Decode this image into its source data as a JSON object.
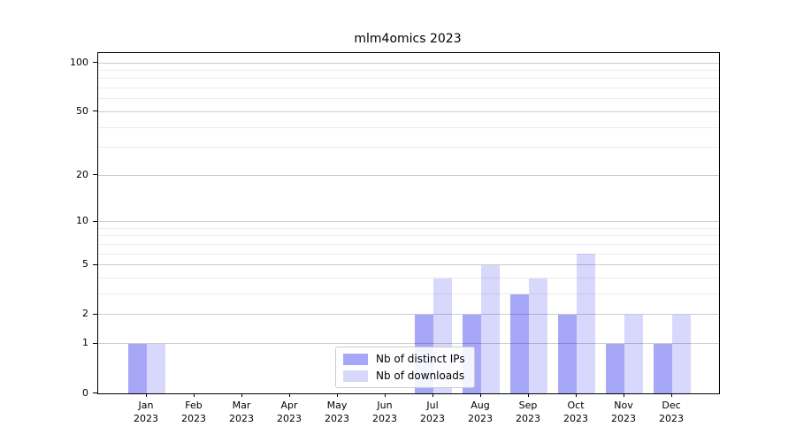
{
  "chart_data": {
    "type": "bar",
    "title": "mlm4omics 2023",
    "categories": [
      "Jan",
      "Feb",
      "Mar",
      "Apr",
      "May",
      "Jun",
      "Jul",
      "Aug",
      "Sep",
      "Oct",
      "Nov",
      "Dec"
    ],
    "category_year": "2023",
    "series": [
      {
        "name": "Nb of distinct IPs",
        "color": "rgba(10,10,235,0.36)",
        "values": [
          1,
          0,
          0,
          0,
          0,
          0,
          2,
          2,
          3,
          2,
          1,
          1
        ]
      },
      {
        "name": "Nb of downloads",
        "color": "rgba(10,10,235,0.16)",
        "values": [
          1,
          0,
          0,
          0,
          0,
          0,
          4,
          5,
          4,
          6,
          2,
          2
        ]
      }
    ],
    "xlabel": "",
    "ylabel": "",
    "y_axis": {
      "scale": "log1p",
      "major_ticks": [
        0,
        1,
        2,
        5,
        10,
        20,
        50,
        100
      ],
      "minor_ticks": [
        3,
        4,
        6,
        7,
        8,
        9,
        30,
        40,
        60,
        70,
        80,
        90
      ],
      "axis_max": 115
    },
    "grid": true,
    "legend_position": "lower center-left inside plot",
    "colors": {
      "major_grid": "#cccccc",
      "minor_grid": "#ececec",
      "axis": "#000000",
      "background": "#ffffff"
    }
  }
}
